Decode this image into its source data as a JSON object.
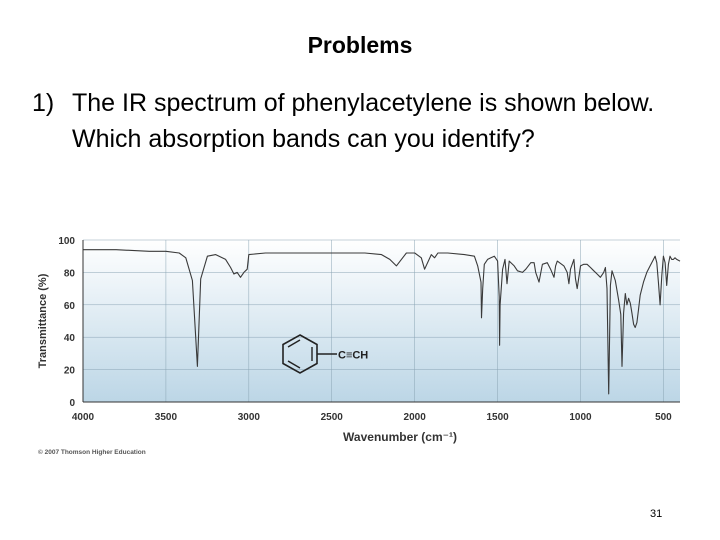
{
  "slide": {
    "title": "Problems",
    "question_number": "1)",
    "question_text": "The IR spectrum of phenylacetylene is shown below. Which absorption bands can you identify?",
    "copyright": "© 2007 Thomson Higher Education",
    "slide_number": "31"
  },
  "molecule": {
    "label": "C≡CH"
  },
  "colors": {
    "plot_bg_top": "#ffffff",
    "plot_bg_bottom": "#bcd6e6",
    "line": "#3a3a3a"
  },
  "chart_data": {
    "type": "line",
    "title": "",
    "xlabel": "Wavenumber (cm⁻¹)",
    "ylabel": "Transmittance (%)",
    "xlim": [
      4000,
      400
    ],
    "ylim": [
      0,
      100
    ],
    "x_reversed": true,
    "x_ticks": [
      4000,
      3500,
      3000,
      2500,
      2000,
      1500,
      1000,
      500
    ],
    "y_ticks": [
      0,
      20,
      40,
      60,
      80,
      100
    ],
    "grid": true,
    "legend": "none",
    "series": [
      {
        "x": [
          4000,
          3800,
          3600,
          3500,
          3420,
          3380,
          3340,
          3310,
          3290,
          3250,
          3200,
          3140,
          3110,
          3090,
          3070,
          3050,
          3030,
          3010,
          3000,
          2900,
          2800,
          2600,
          2400,
          2300,
          2200,
          2150,
          2110,
          2080,
          2050,
          2000,
          1960,
          1940,
          1900,
          1880,
          1860,
          1800,
          1700,
          1640,
          1620,
          1600,
          1597,
          1590,
          1580,
          1560,
          1540,
          1520,
          1500,
          1490,
          1488,
          1485,
          1470,
          1455,
          1443,
          1430,
          1400,
          1380,
          1350,
          1330,
          1300,
          1280,
          1270,
          1250,
          1230,
          1200,
          1180,
          1160,
          1150,
          1140,
          1100,
          1080,
          1070,
          1060,
          1040,
          1030,
          1020,
          1000,
          980,
          960,
          940,
          920,
          900,
          880,
          860,
          850,
          840,
          830,
          820,
          810,
          790,
          770,
          757,
          750,
          740,
          730,
          720,
          710,
          700,
          690,
          680,
          670,
          660,
          650,
          640,
          620,
          600,
          580,
          560,
          550,
          540,
          530,
          520,
          510,
          500,
          490,
          480,
          470,
          460,
          450,
          440,
          430,
          420,
          400
        ],
        "y": [
          94,
          94,
          93,
          93,
          92,
          89,
          75,
          22,
          76,
          90,
          91,
          88,
          83,
          79,
          80,
          77,
          80,
          82,
          91,
          92,
          92,
          92,
          92,
          92,
          91,
          88,
          84,
          88,
          92,
          92,
          89,
          82,
          91,
          89,
          92,
          92,
          91,
          90,
          84,
          74,
          52,
          70,
          85,
          88,
          89,
          90,
          87,
          65,
          35,
          60,
          82,
          88,
          73,
          87,
          84,
          81,
          80,
          82,
          86,
          86,
          80,
          74,
          85,
          86,
          82,
          77,
          84,
          87,
          84,
          80,
          73,
          82,
          88,
          76,
          70,
          84,
          85,
          85,
          83,
          81,
          79,
          77,
          80,
          83,
          70,
          5,
          72,
          81,
          75,
          63,
          54,
          22,
          55,
          67,
          60,
          64,
          61,
          55,
          48,
          46,
          49,
          57,
          66,
          74,
          80,
          84,
          88,
          90,
          86,
          74,
          60,
          78,
          90,
          86,
          72,
          85,
          90,
          88,
          88,
          89,
          88,
          87
        ]
      }
    ]
  }
}
